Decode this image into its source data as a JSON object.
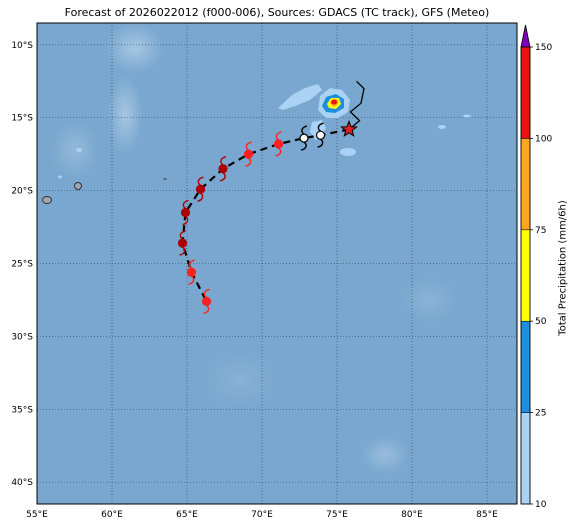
{
  "title": "Forecast of 2026022012 (f000-006), Sources: GDACS (TC track), GFS (Meteo)",
  "map": {
    "lon_range": [
      55,
      87
    ],
    "lat_range": [
      -41.5,
      -8.5
    ],
    "lon_ticks": [
      {
        "value": 55,
        "label": "55°E"
      },
      {
        "value": 60,
        "label": "60°E"
      },
      {
        "value": 65,
        "label": "65°E"
      },
      {
        "value": 70,
        "label": "70°E"
      },
      {
        "value": 75,
        "label": "75°E"
      },
      {
        "value": 80,
        "label": "80°E"
      },
      {
        "value": 85,
        "label": "85°E"
      }
    ],
    "lat_ticks": [
      {
        "value": -10,
        "label": "10°S"
      },
      {
        "value": -15,
        "label": "15°S"
      },
      {
        "value": -20,
        "label": "20°S"
      },
      {
        "value": -25,
        "label": "25°S"
      },
      {
        "value": -30,
        "label": "30°S"
      },
      {
        "value": -35,
        "label": "35°S"
      },
      {
        "value": -40,
        "label": "40°S"
      }
    ],
    "ocean_color": "#79a7cf"
  },
  "track": {
    "line_color": "#000000",
    "current_position": {
      "lon": 75.8,
      "lat": -15.8,
      "color": "#e02020",
      "marker": "star"
    },
    "points": [
      {
        "lon": 73.9,
        "lat": -16.2,
        "category": "low",
        "color": "#ffffff"
      },
      {
        "lon": 72.8,
        "lat": -16.4,
        "category": "low",
        "color": "#ffffff"
      },
      {
        "lon": 71.1,
        "lat": -16.8,
        "category": "storm",
        "color": "#ff2020"
      },
      {
        "lon": 69.1,
        "lat": -17.5,
        "category": "storm",
        "color": "#ff2020"
      },
      {
        "lon": 67.4,
        "lat": -18.5,
        "category": "cyclone",
        "color": "#aa0000"
      },
      {
        "lon": 65.9,
        "lat": -19.9,
        "category": "cyclone",
        "color": "#aa0000"
      },
      {
        "lon": 64.9,
        "lat": -21.5,
        "category": "cyclone",
        "color": "#aa0000"
      },
      {
        "lon": 64.7,
        "lat": -23.6,
        "category": "cyclone",
        "color": "#aa0000"
      },
      {
        "lon": 65.3,
        "lat": -25.6,
        "category": "storm",
        "color": "#ff2020"
      },
      {
        "lon": 66.3,
        "lat": -27.6,
        "category": "storm",
        "color": "#ff2020"
      }
    ],
    "past_track": [
      [
        76.3,
        -12.5
      ],
      [
        76.8,
        -13.0
      ],
      [
        76.6,
        -14.0
      ],
      [
        75.9,
        -14.6
      ],
      [
        76.5,
        -15.2
      ],
      [
        75.8,
        -15.8
      ]
    ]
  },
  "colorbar": {
    "label": "Total Precipitation (mm/6h)",
    "levels": [
      10,
      25,
      50,
      75,
      100,
      150
    ],
    "colors": [
      "#aad2f5",
      "#1e8fde",
      "#ffff00",
      "#ffa520",
      "#ee1111"
    ],
    "extend_color": "#8000c0"
  }
}
